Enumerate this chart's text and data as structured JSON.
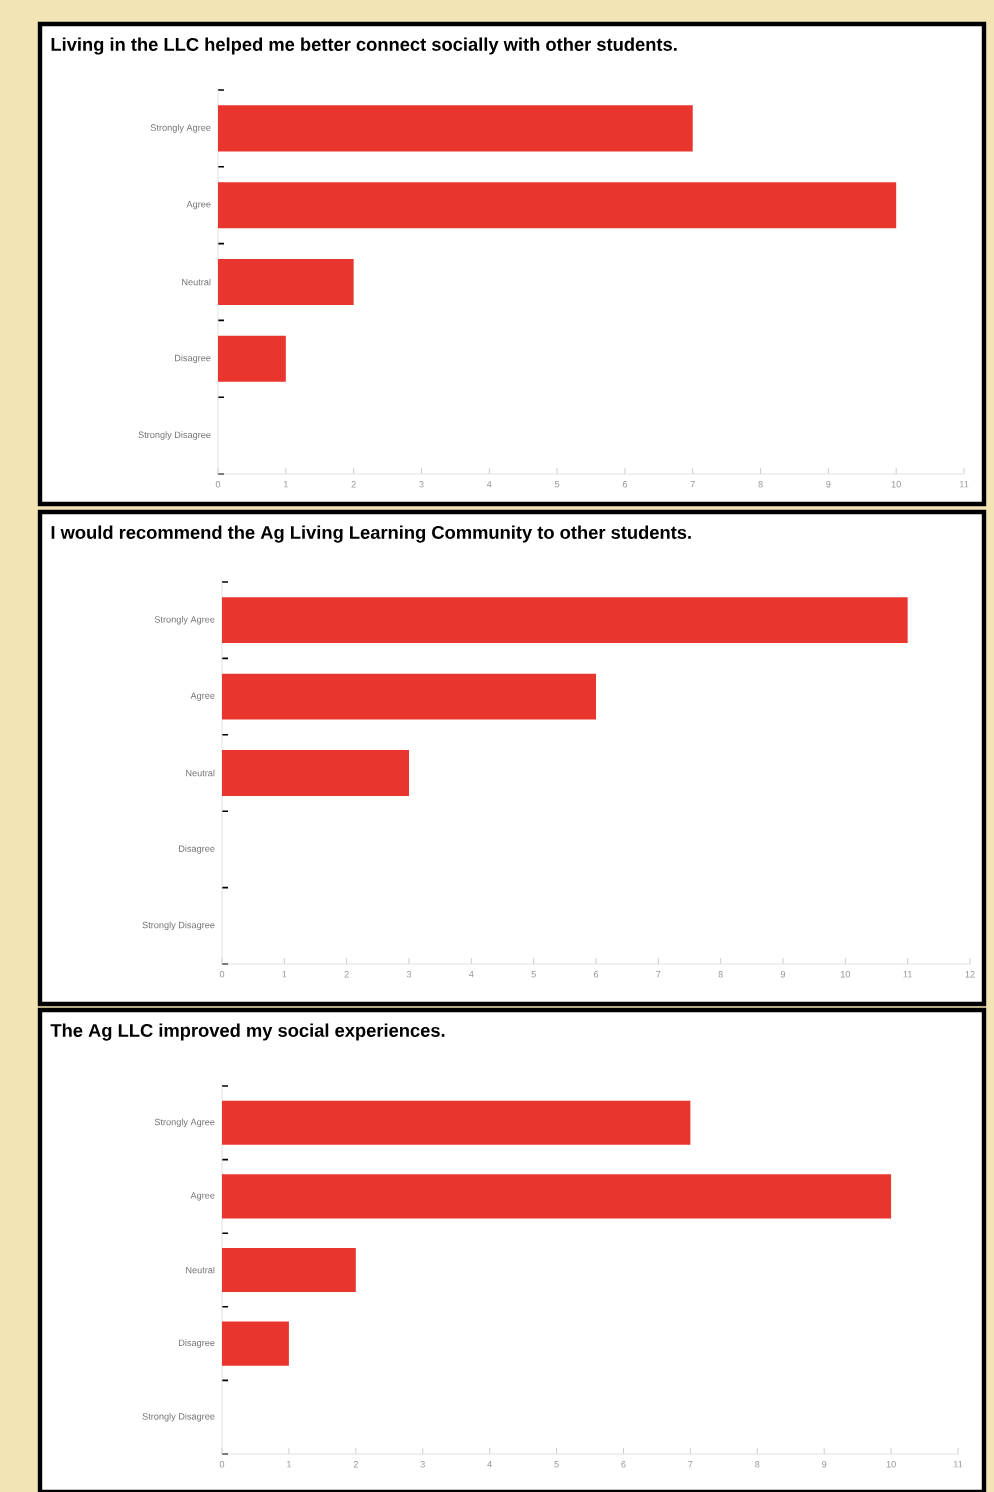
{
  "chart_data": [
    {
      "type": "bar",
      "orientation": "horizontal",
      "title": "Living in the LLC helped me better connect socially with other students.",
      "categories": [
        "Strongly Agree",
        "Agree",
        "Neutral",
        "Disagree",
        "Strongly Disagree"
      ],
      "values": [
        7,
        10,
        2,
        1,
        0
      ],
      "color": "#e8352e",
      "xlim": [
        0,
        11
      ],
      "xticks": [
        0,
        1,
        2,
        3,
        4,
        5,
        6,
        7,
        8,
        9,
        10,
        11
      ]
    },
    {
      "type": "bar",
      "orientation": "horizontal",
      "title": "I would recommend the Ag Living Learning Community to other students.",
      "categories": [
        "Strongly Agree",
        "Agree",
        "Neutral",
        "Disagree",
        "Strongly Disagree"
      ],
      "values": [
        11,
        6,
        3,
        0,
        0
      ],
      "color": "#e8352e",
      "xlim": [
        0,
        12
      ],
      "xticks": [
        0,
        1,
        2,
        3,
        4,
        5,
        6,
        7,
        8,
        9,
        10,
        11,
        12
      ]
    },
    {
      "type": "bar",
      "orientation": "horizontal",
      "title": "The Ag LLC improved my social experiences.",
      "categories": [
        "Strongly Agree",
        "Agree",
        "Neutral",
        "Disagree",
        "Strongly Disagree"
      ],
      "values": [
        7,
        10,
        2,
        1,
        0
      ],
      "color": "#e8352e",
      "xlim": [
        0,
        11
      ],
      "xticks": [
        0,
        1,
        2,
        3,
        4,
        5,
        6,
        7,
        8,
        9,
        10,
        11
      ]
    }
  ]
}
